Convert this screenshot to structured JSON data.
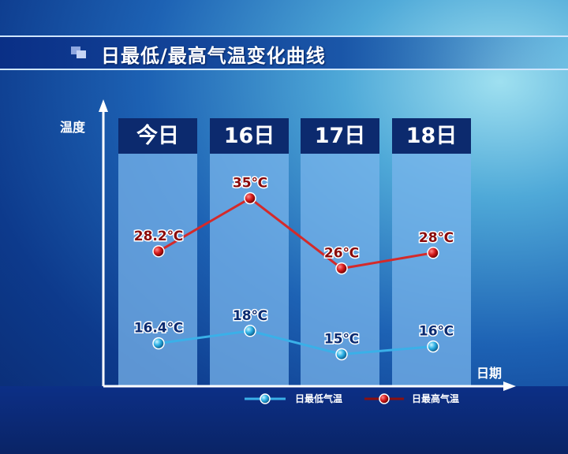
{
  "title": "日最低/最高气温变化曲线",
  "chart_data": {
    "type": "line",
    "title": "日最低/最高气温变化曲线",
    "xlabel": "日期",
    "ylabel": "温度",
    "categories": [
      "今日",
      "16日",
      "17日",
      "18日"
    ],
    "series": [
      {
        "name": "日最低气温",
        "values": [
          16.4,
          18,
          15,
          16
        ],
        "labels": [
          "16.4℃",
          "18℃",
          "15℃",
          "16℃"
        ],
        "color": "#3ab0e8"
      },
      {
        "name": "日最高气温",
        "values": [
          28.2,
          35,
          26,
          28
        ],
        "labels": [
          "28.2℃",
          "35℃",
          "26℃",
          "28℃"
        ],
        "color": "#d42a2a"
      }
    ],
    "grid": false,
    "legend": "bottom"
  }
}
